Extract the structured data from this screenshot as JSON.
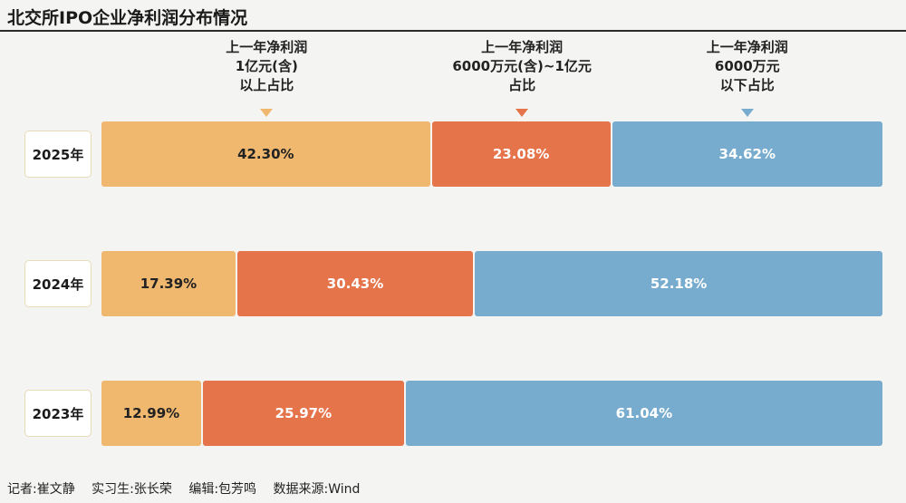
{
  "title": "北交所IPO企业净利润分布情况",
  "legend": [
    {
      "label": "上一年净利润\n1亿元(含)\n以上占比",
      "color": "#f0b76f"
    },
    {
      "label": "上一年净利润\n6000万元(含)~1亿元\n占比",
      "color": "#e6744b"
    },
    {
      "label": "上一年净利润\n6000万元\n以下占比",
      "color": "#77acce"
    }
  ],
  "chart_data": {
    "type": "bar",
    "orientation": "horizontal",
    "stacked": true,
    "unit": "%",
    "categories": [
      "2025年",
      "2024年",
      "2023年"
    ],
    "series": [
      {
        "name": "上一年净利润1亿元(含)以上占比",
        "values": [
          42.3,
          17.39,
          12.99
        ],
        "labels": [
          "42.30%",
          "17.39%",
          "12.99%"
        ]
      },
      {
        "name": "上一年净利润6000万元(含)~1亿元占比",
        "values": [
          23.08,
          30.43,
          25.97
        ],
        "labels": [
          "23.08%",
          "30.43%",
          "25.97%"
        ]
      },
      {
        "name": "上一年净利润6000万元以下占比",
        "values": [
          34.62,
          52.18,
          61.04
        ],
        "labels": [
          "34.62%",
          "52.18%",
          "61.04%"
        ]
      }
    ],
    "title": "北交所IPO企业净利润分布情况",
    "xlim": [
      0,
      100
    ]
  },
  "footer": {
    "reporter": "记者:崔文静",
    "intern": "实习生:张长荣",
    "editor": "编辑:包芳鸣",
    "source": "数据来源:Wind"
  }
}
